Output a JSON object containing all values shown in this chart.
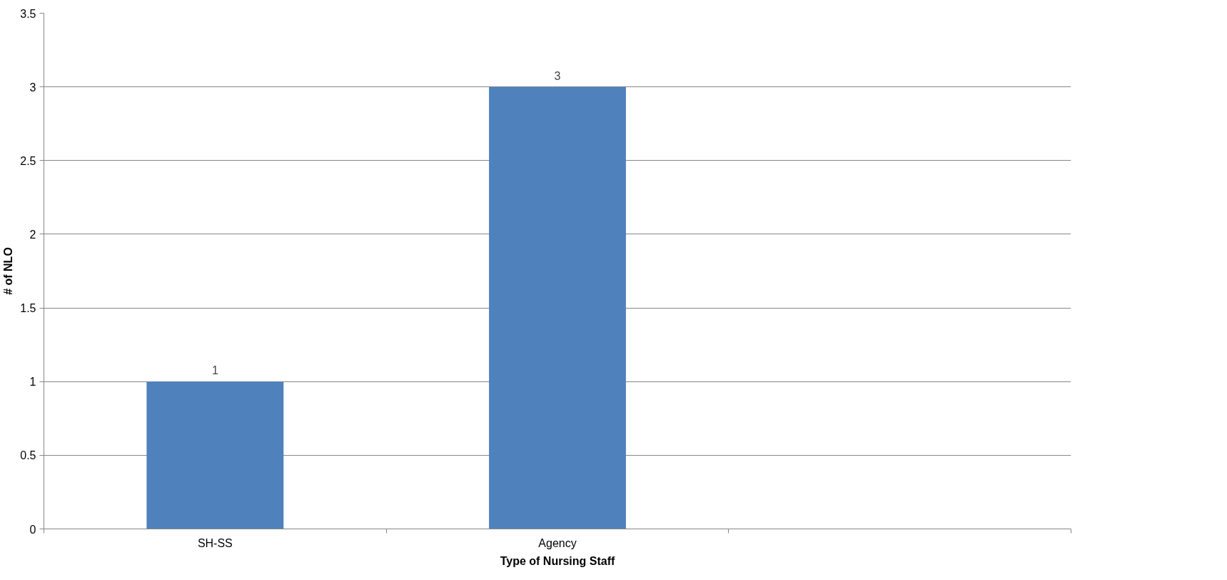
{
  "chart_data": {
    "type": "bar",
    "xlabel": "Type of Nursing Staff",
    "ylabel": "# of NLO",
    "categories": [
      "SH-SS",
      "Agency",
      null
    ],
    "series": [
      {
        "color": "#4f81bd",
        "values": [
          1,
          3,
          null
        ]
      }
    ],
    "ylim": [
      0,
      3.5
    ],
    "yticks": [
      0,
      0.5,
      1,
      1.5,
      2,
      2.5,
      3,
      3.5
    ],
    "grid": "y",
    "data_labels": true
  }
}
